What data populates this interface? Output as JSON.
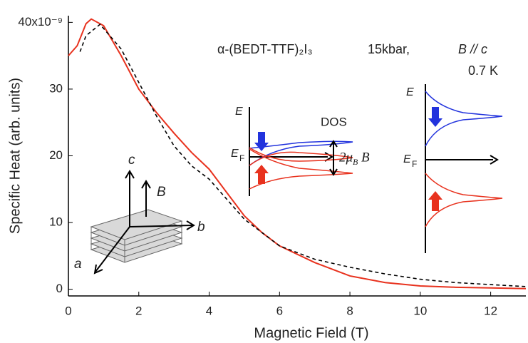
{
  "chart_data": {
    "type": "line",
    "x_label": "Magnetic Field (T)",
    "y_label": "Specific Heat (arb. units)",
    "xlim": [
      0,
      13
    ],
    "xticks": [
      0,
      2,
      4,
      6,
      8,
      10,
      12
    ],
    "ylim": [
      -1,
      41
    ],
    "yticks": [
      0,
      10,
      20,
      30,
      {
        "value": 40,
        "label": "40x10⁻⁹"
      }
    ],
    "series": [
      {
        "color": "#e8321e",
        "style": "solid",
        "x": [
          0,
          0.25,
          0.5,
          0.65,
          1,
          1.5,
          2,
          2.5,
          3,
          3.5,
          4,
          4.5,
          5,
          5.5,
          6,
          7,
          8,
          9,
          10,
          11,
          12,
          13
        ],
        "values": [
          35,
          36.5,
          39.8,
          40.5,
          39.5,
          35,
          30,
          26.5,
          23.4,
          20.5,
          18,
          14.5,
          11,
          8.5,
          6.5,
          4,
          2,
          1,
          0.5,
          0.3,
          0.2,
          0.1
        ]
      },
      {
        "color": "#000000",
        "style": "dashed",
        "x": [
          0.33,
          0.5,
          0.9,
          1.5,
          2,
          2.5,
          3,
          3.5,
          4,
          4.5,
          5,
          6,
          7,
          8,
          9,
          10,
          11,
          12,
          13
        ],
        "values": [
          35.6,
          38,
          39.7,
          36,
          31,
          26,
          21.5,
          18.5,
          16.5,
          13.5,
          10.5,
          6.5,
          4.5,
          3.3,
          2.3,
          1.5,
          1,
          0.7,
          0.4
        ]
      }
    ],
    "annotations": [
      "α-(BEDT-TTF)₂I₃",
      "15kbar,",
      "B // c",
      "0.7 K",
      "E",
      "E",
      "F",
      "DOS",
      "2μ",
      "B",
      "B",
      "E",
      "E",
      "F",
      "c",
      "B",
      "b",
      "a"
    ]
  }
}
